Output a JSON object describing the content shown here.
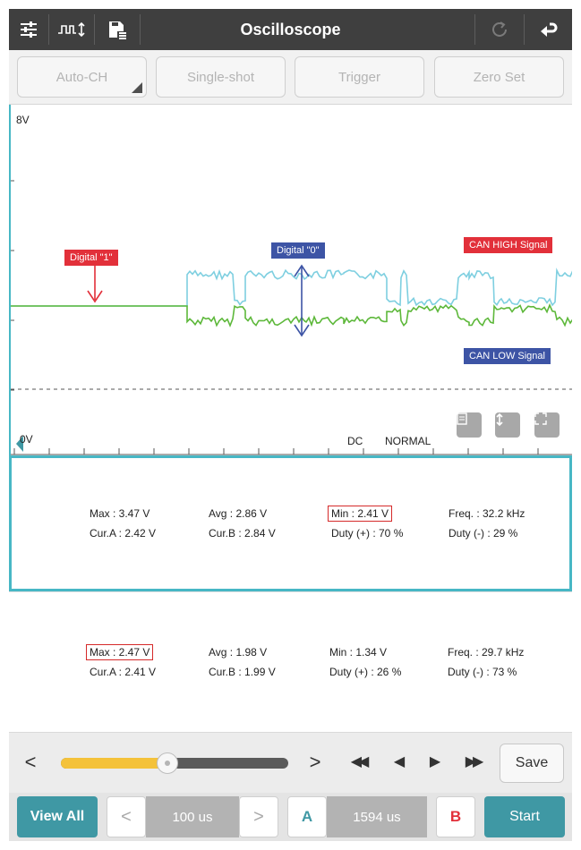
{
  "header": {
    "title": "Oscilloscope",
    "icons": [
      "sliders-icon",
      "pulse-icon",
      "save-file-icon",
      "refresh-icon",
      "back-arrow-icon"
    ]
  },
  "toolbar": {
    "auto_ch": "Auto-CH",
    "single_shot": "Single-shot",
    "trigger": "Trigger",
    "zero_set": "Zero Set"
  },
  "scope": {
    "y_top_label": "8V",
    "y_bottom_label": "0V",
    "coupling": "DC",
    "mode": "NORMAL",
    "annotations": {
      "digital_1": "Digital \"1\"",
      "digital_0": "Digital \"0\"",
      "can_high": "CAN HIGH Signal",
      "can_low": "CAN LOW Signal"
    },
    "colors": {
      "can_high": "#7ecfe0",
      "can_low": "#5db83a",
      "accent_red": "#e2303a",
      "accent_blue": "#3d54a5"
    }
  },
  "channel1": {
    "max": "Max : 3.47 V",
    "avg": "Avg : 2.86 V",
    "min": "Min : 2.41 V",
    "freq": "Freq. : 32.2 kHz",
    "cur_a": "Cur.A : 2.42 V",
    "cur_b": "Cur.B : 2.84 V",
    "duty_pos": "Duty (+) : 70 %",
    "duty_neg": "Duty (-) : 29 %"
  },
  "channel2": {
    "max": "Max : 2.47 V",
    "avg": "Avg : 1.98 V",
    "min": "Min : 1.34 V",
    "freq": "Freq. : 29.7 kHz",
    "cur_a": "Cur.A : 2.41 V",
    "cur_b": "Cur.B : 1.99 V",
    "duty_pos": "Duty (+) : 26 %",
    "duty_neg": "Duty (-) : 73 %"
  },
  "playback": {
    "prev": "<",
    "next": ">",
    "rewind": "◀◀",
    "step_back": "◀",
    "play": "▶",
    "fast_forward": "▶▶",
    "save": "Save",
    "slider_position": 0.47
  },
  "bottom": {
    "view_all": "View All",
    "time_prev": "<",
    "time_div": "100 us",
    "time_next": ">",
    "cursor_a": "A",
    "cursor_delta": "1594 us",
    "cursor_b": "B",
    "start": "Start",
    "cursor_a_color": "#3f98a4",
    "cursor_b_color": "#e2303a"
  }
}
